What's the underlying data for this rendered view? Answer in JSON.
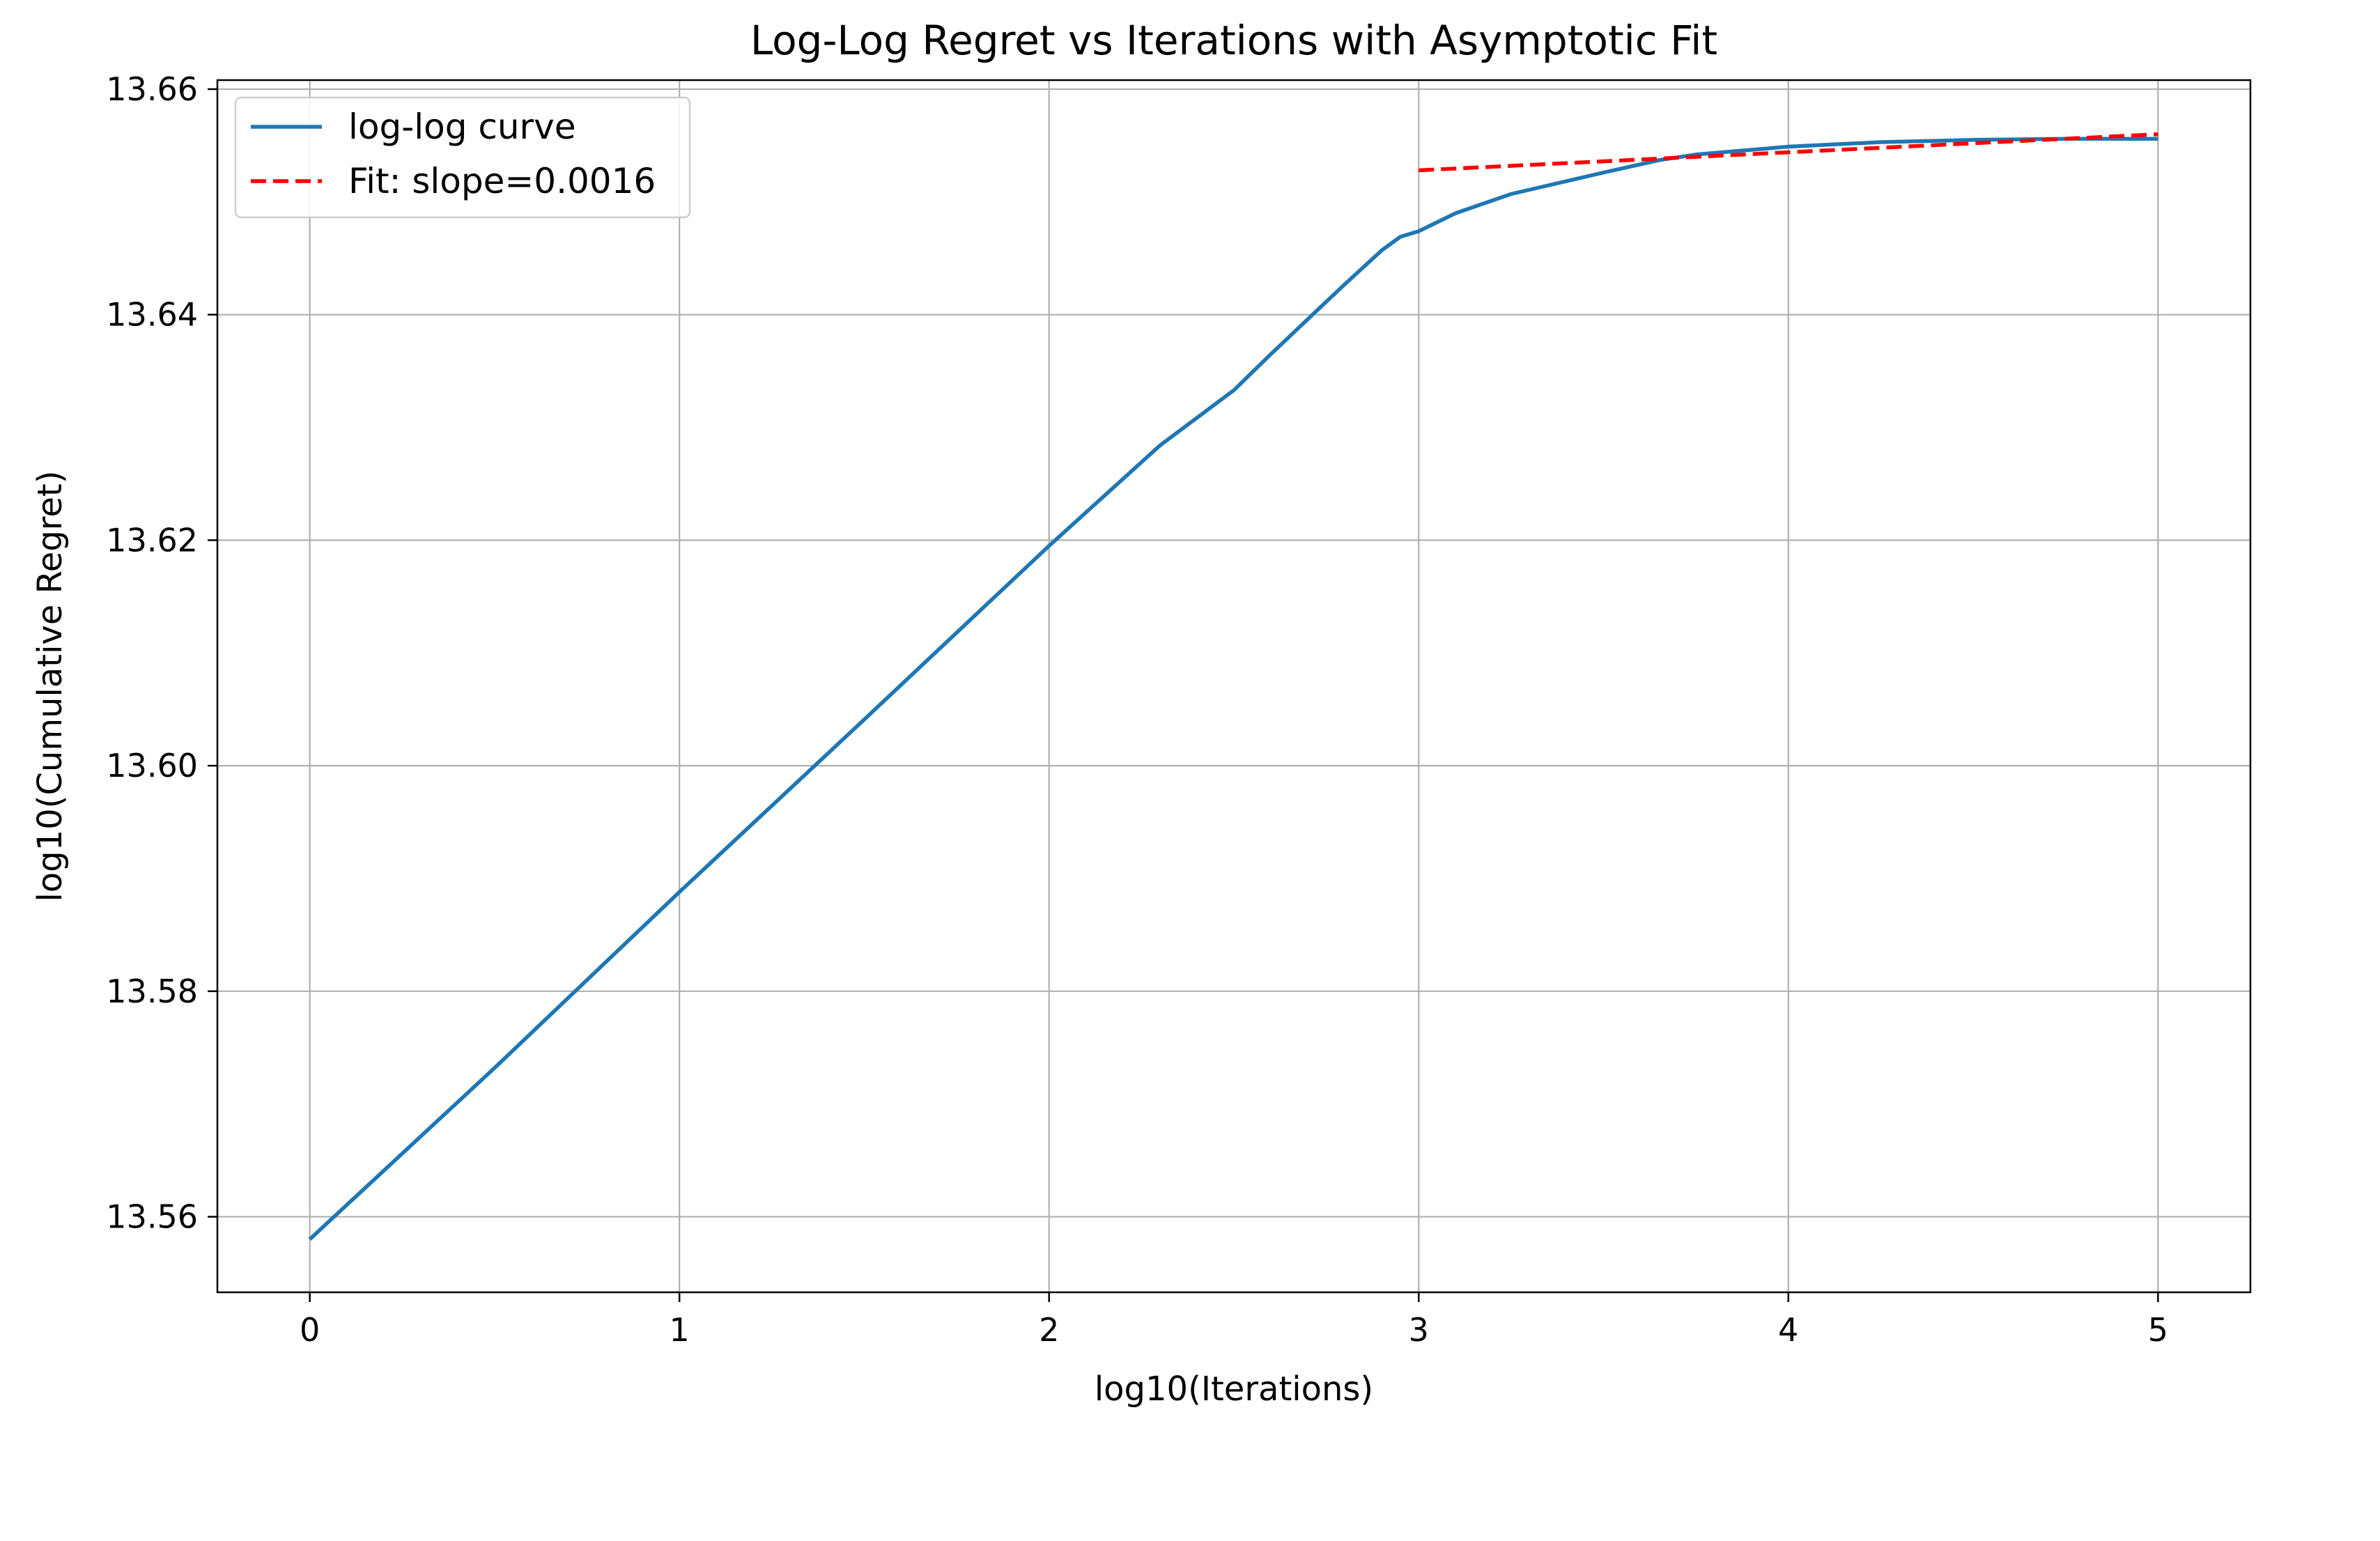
{
  "chart_data": {
    "type": "line",
    "title": "Log-Log Regret vs Iterations with Asymptotic Fit",
    "xlabel": "log10(Iterations)",
    "ylabel": "log10(Cumulative Regret)",
    "xlim": [
      -0.25,
      5.25
    ],
    "ylim": [
      13.5533,
      13.6608
    ],
    "xticks": [
      0,
      1,
      2,
      3,
      4,
      5
    ],
    "xtick_labels": [
      "0",
      "1",
      "2",
      "3",
      "4",
      "5"
    ],
    "yticks": [
      13.56,
      13.58,
      13.6,
      13.62,
      13.64,
      13.66
    ],
    "ytick_labels": [
      "13.56",
      "13.58",
      "13.60",
      "13.62",
      "13.64",
      "13.66"
    ],
    "grid": true,
    "legend_position": "top-left",
    "series": [
      {
        "name": "log-log curve",
        "color": "#1f77b4",
        "style": "solid",
        "x": [
          0,
          0.5,
          1.0,
          1.5,
          2.0,
          2.3,
          2.5,
          2.6,
          2.7,
          2.8,
          2.9,
          2.95,
          3.0,
          3.1,
          3.25,
          3.5,
          3.65,
          3.75,
          4.0,
          4.25,
          4.5,
          4.75,
          5.0
        ],
        "y": [
          13.558,
          13.5732,
          13.5888,
          13.6041,
          13.6195,
          13.6284,
          13.6333,
          13.6365,
          13.6396,
          13.6427,
          13.6457,
          13.6469,
          13.6474,
          13.649,
          13.6507,
          13.6526,
          13.6537,
          13.6542,
          13.6549,
          13.6553,
          13.6555,
          13.6556,
          13.6556
        ]
      },
      {
        "name": "Fit: slope=0.0016",
        "color": "#ff0000",
        "style": "dashed",
        "x": [
          3.0,
          5.0
        ],
        "y": [
          13.6528,
          13.656
        ]
      }
    ]
  }
}
